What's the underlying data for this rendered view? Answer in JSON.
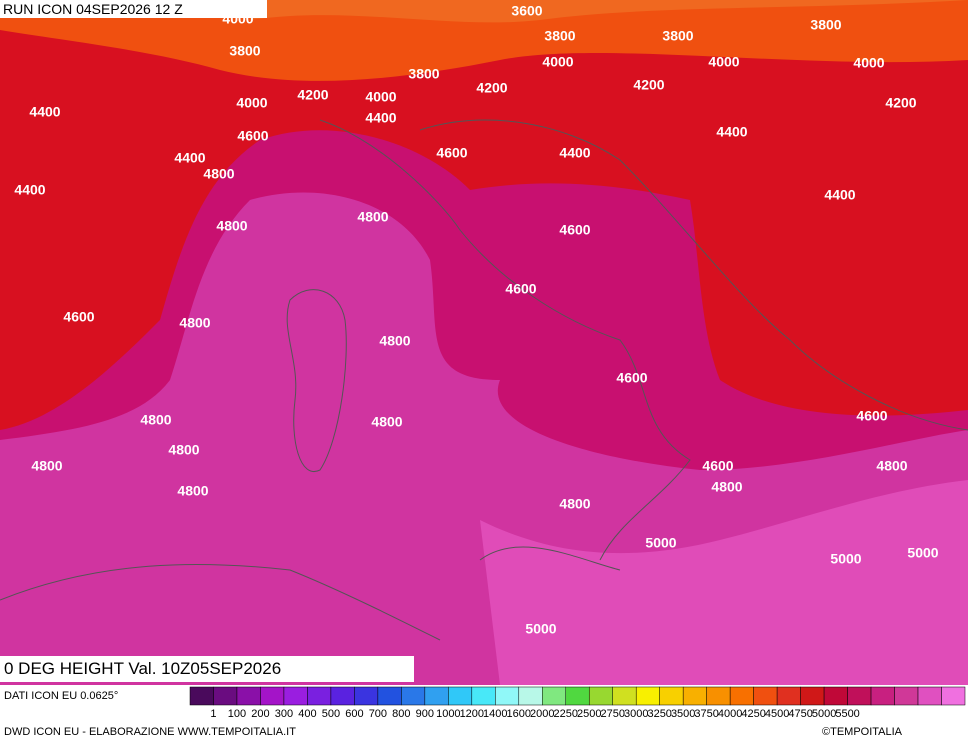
{
  "header": {
    "run": "RUN ICON 04SEP2026 12 Z",
    "field": "0 DEG HEIGHT Val. 10Z05SEP2026"
  },
  "footer": {
    "source": "DATI ICON EU 0.0625°",
    "credit": "DWD ICON EU - ELABORAZIONE WWW.TEMPOITALIA.IT",
    "copyright": "©TEMPOITALIA"
  },
  "contour_labels": [
    "4000",
    "3600",
    "3800",
    "3800",
    "3800",
    "3800",
    "4000",
    "4000",
    "4000",
    "3800",
    "4000",
    "4200",
    "4000",
    "4200",
    "4200",
    "4200",
    "4400",
    "4400",
    "4600",
    "4400",
    "4400",
    "4600",
    "4400",
    "4800",
    "4400",
    "4400",
    "4800",
    "4800",
    "4600",
    "4600",
    "4600",
    "4800",
    "4800",
    "4600",
    "4800",
    "4800",
    "4600",
    "4800",
    "4800",
    "4600",
    "4800",
    "4800",
    "4800",
    "4800",
    "5000",
    "5000",
    "5000",
    "5000"
  ],
  "color_scale": {
    "labels": [
      "1",
      "100",
      "200",
      "300",
      "400",
      "500",
      "600",
      "700",
      "800",
      "900",
      "1000",
      "1200",
      "1400",
      "1600",
      "2000",
      "2250",
      "2500",
      "2750",
      "3000",
      "3250",
      "3500",
      "3750",
      "4000",
      "4250",
      "4500",
      "4750",
      "5000",
      "5500"
    ],
    "colors": [
      "#4a0a5c",
      "#6a0c80",
      "#8a10a8",
      "#a414c8",
      "#9a1ee0",
      "#7a20e0",
      "#5a22e0",
      "#3a34e0",
      "#2252e0",
      "#2a78e8",
      "#30a0f0",
      "#30c8f8",
      "#48e8f8",
      "#90f8f8",
      "#b8f8e8",
      "#80e880",
      "#50d840",
      "#98d830",
      "#d0e020",
      "#f8f000",
      "#f8d000",
      "#f8b000",
      "#f89000",
      "#f87000",
      "#f05010",
      "#e03020",
      "#d01818",
      "#c00838",
      "#c0105a",
      "#c82080",
      "#d03898",
      "#e050c0",
      "#f070e0"
    ]
  }
}
